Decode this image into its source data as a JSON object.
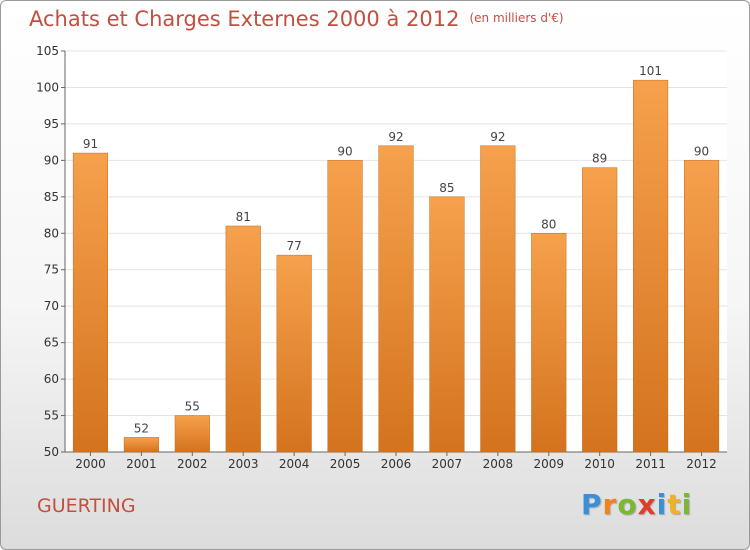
{
  "chart_data": {
    "type": "bar",
    "title": "Achats et Charges Externes 2000 à 2012",
    "subtitle": "(en milliers d'€)",
    "categories": [
      "2000",
      "2001",
      "2002",
      "2003",
      "2004",
      "2005",
      "2006",
      "2007",
      "2008",
      "2009",
      "2010",
      "2011",
      "2012"
    ],
    "values": [
      91,
      52,
      55,
      81,
      77,
      90,
      92,
      85,
      92,
      80,
      89,
      101,
      90
    ],
    "ylim": [
      50,
      105
    ],
    "yticks": [
      50,
      55,
      60,
      65,
      70,
      75,
      80,
      85,
      90,
      95,
      100,
      105
    ],
    "grid": true,
    "bar_color": "#f0943c",
    "text_color": "#c24f3f"
  },
  "footer": {
    "place": "GUERTING",
    "logo_letters": [
      "P",
      "r",
      "o",
      "x",
      "i",
      "t",
      "i"
    ],
    "logo_colors": [
      "#3a8fd6",
      "#f0831e",
      "#7cb82f",
      "#e23b2e",
      "#3a8fd6",
      "#f0b21e",
      "#7cb82f"
    ]
  }
}
